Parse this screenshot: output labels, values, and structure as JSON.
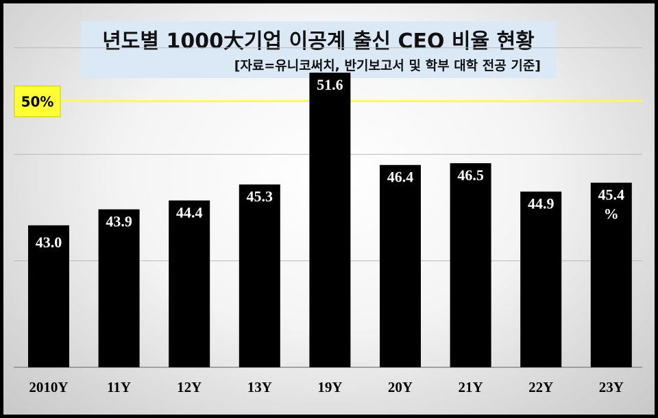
{
  "chart_data": {
    "type": "bar",
    "title": "년도별 1000大기업 이공계 출신 CEO 비율 현황",
    "subtitle": "[자료=유니코써치,  반기보고서 및 학부 대학 전공 기준]",
    "categories": [
      "2010Y",
      "11Y",
      "12Y",
      "13Y",
      "19Y",
      "20Y",
      "21Y",
      "22Y",
      "23Y"
    ],
    "series": [
      {
        "values": [
          43.0,
          43.9,
          44.4,
          45.3,
          51.6,
          46.4,
          46.5,
          44.9,
          45.4
        ]
      }
    ],
    "value_labels": [
      "43.0",
      "43.9",
      "44.4",
      "45.3",
      "51.6",
      "46.4",
      "46.5",
      "44.9",
      "45.4"
    ],
    "unit_label": "%",
    "reference_line": {
      "value": 50,
      "label": "50%",
      "color": "#ffff33"
    },
    "ylim": [
      35,
      53
    ],
    "grid": true,
    "bar_color": "#000000",
    "label_color": "#ffffff"
  }
}
